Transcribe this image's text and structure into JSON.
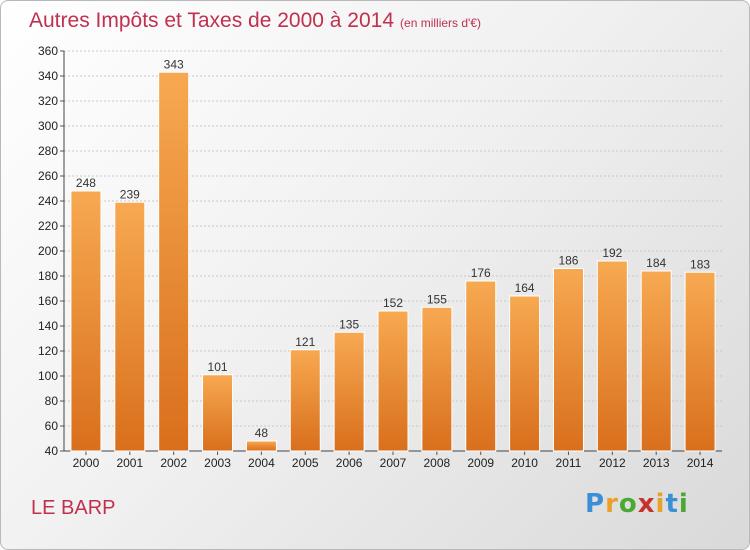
{
  "header": {
    "title": "Autres Impôts et Taxes de 2000 à 2014",
    "unit": "(en milliers d'€)"
  },
  "footer": {
    "commune": "LE BARP",
    "logo": "Proxiti",
    "logo_letters": [
      "P",
      "r",
      "o",
      "x",
      "i",
      "t",
      "i"
    ],
    "logo_colors": [
      "#3a8fd6",
      "#e9a12a",
      "#4aa835",
      "#c8322c",
      "#e9a12a",
      "#3a8fd6",
      "#4aa835"
    ]
  },
  "colors": {
    "title": "#c0304f",
    "bar_light": "#f7a951",
    "bar_dark": "#d96f1c",
    "grid": "#c8c8c8"
  },
  "chart_data": {
    "type": "bar",
    "title": "Autres Impôts et Taxes de 2000 à 2014",
    "subtitle": "(en milliers d'€)",
    "xlabel": "",
    "ylabel": "",
    "categories": [
      "2000",
      "2001",
      "2002",
      "2003",
      "2004",
      "2005",
      "2006",
      "2007",
      "2008",
      "2009",
      "2010",
      "2011",
      "2012",
      "2013",
      "2014"
    ],
    "values": [
      248,
      239,
      343,
      101,
      48,
      121,
      135,
      152,
      155,
      176,
      164,
      186,
      192,
      184,
      183
    ],
    "ylim": [
      40,
      360
    ],
    "yticks": [
      40,
      60,
      80,
      100,
      120,
      140,
      160,
      180,
      200,
      220,
      240,
      260,
      280,
      300,
      320,
      340,
      360
    ],
    "grid": true,
    "legend": "none"
  }
}
